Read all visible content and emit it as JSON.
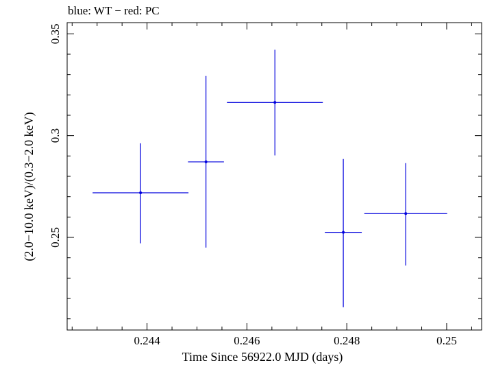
{
  "chart_data": {
    "type": "scatter",
    "title": "blue: WT − red: PC",
    "xlabel": "Time Since 56922.0 MJD (days)",
    "ylabel": "(2.0−10.0 keV)/(0.3−2.0 keV)",
    "xlim": [
      0.2424,
      0.2507
    ],
    "ylim": [
      0.2045,
      0.3555
    ],
    "xticks": [
      0.244,
      0.246,
      0.248,
      0.25
    ],
    "xtick_labels": [
      "0.244",
      "0.246",
      "0.248",
      "0.25"
    ],
    "yticks": [
      0.25,
      0.3,
      0.35
    ],
    "ytick_labels": [
      "0.25",
      "0.3",
      "0.35"
    ],
    "grid": false,
    "series": [
      {
        "color": "#0000dd",
        "points": [
          {
            "x": 0.24387,
            "y": 0.2719,
            "xerr_lo": 0.00096,
            "xerr_hi": 0.00096,
            "yerr_lo": 0.0248,
            "yerr_hi": 0.0243
          },
          {
            "x": 0.24518,
            "y": 0.2871,
            "xerr_lo": 0.00036,
            "xerr_hi": 0.00036,
            "yerr_lo": 0.0421,
            "yerr_hi": 0.0422
          },
          {
            "x": 0.24656,
            "y": 0.3163,
            "xerr_lo": 0.00096,
            "xerr_hi": 0.00096,
            "yerr_lo": 0.026,
            "yerr_hi": 0.0259
          },
          {
            "x": 0.24793,
            "y": 0.2525,
            "xerr_lo": 0.00037,
            "xerr_hi": 0.00037,
            "yerr_lo": 0.0368,
            "yerr_hi": 0.036
          },
          {
            "x": 0.24918,
            "y": 0.2617,
            "xerr_lo": 0.00083,
            "xerr_hi": 0.00083,
            "yerr_lo": 0.0255,
            "yerr_hi": 0.0248
          }
        ]
      }
    ]
  }
}
